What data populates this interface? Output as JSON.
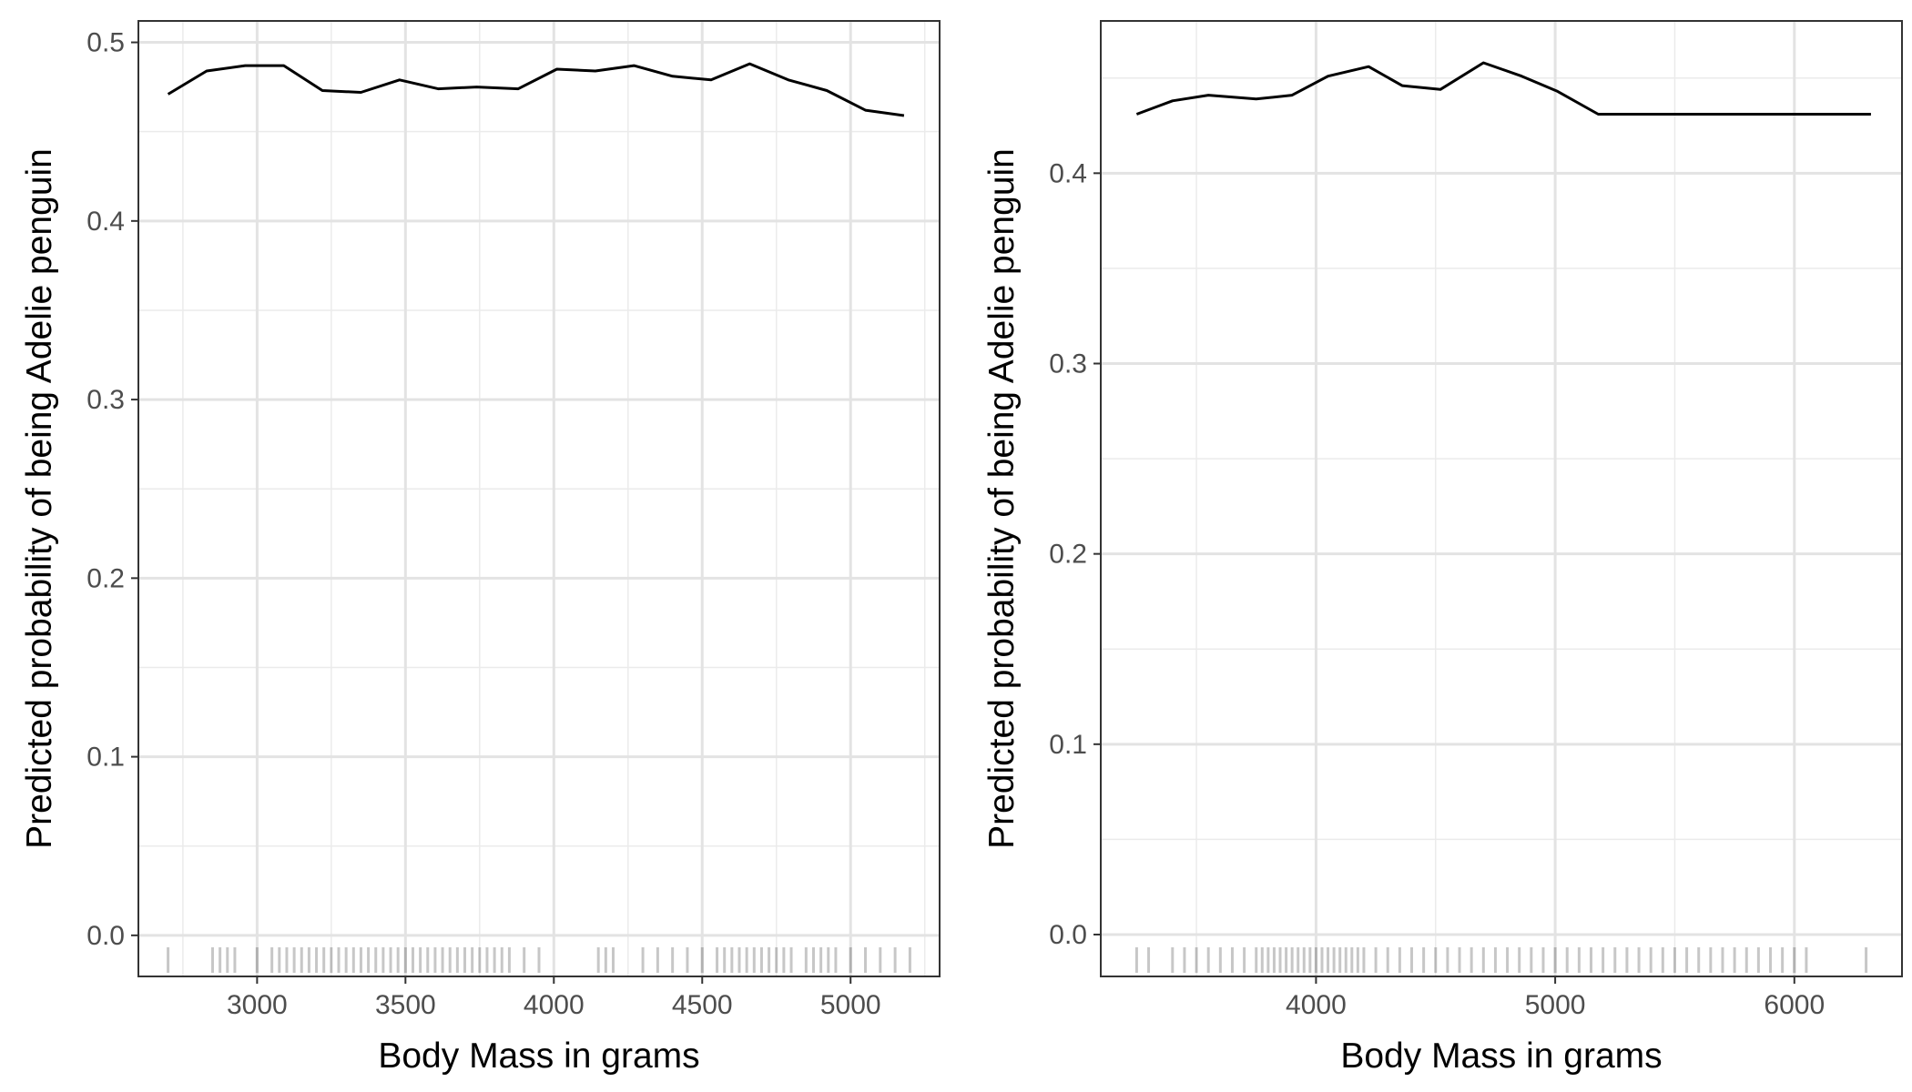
{
  "chart_data": [
    {
      "type": "line",
      "title": "",
      "xlabel": "Body Mass in grams",
      "ylabel": "Predicted probability of being Adelie penguin",
      "xlim": [
        2600,
        5300
      ],
      "ylim": [
        -0.023,
        0.512
      ],
      "x_ticks": [
        3000,
        3500,
        4000,
        4500,
        5000
      ],
      "y_ticks": [
        0.0,
        0.1,
        0.2,
        0.3,
        0.4,
        0.5
      ],
      "x_tick_labels": [
        "3000",
        "3500",
        "4000",
        "4500",
        "5000"
      ],
      "y_tick_labels": [
        "0.0",
        "0.1",
        "0.2",
        "0.3",
        "0.4",
        "0.5"
      ],
      "grid": true,
      "series": [
        {
          "x": [
            2700,
            2830,
            2960,
            3090,
            3220,
            3350,
            3480,
            3610,
            3740,
            3880,
            4010,
            4140,
            4270,
            4400,
            4530,
            4660,
            4790,
            4920,
            5050,
            5180
          ],
          "y": [
            0.471,
            0.484,
            0.487,
            0.487,
            0.473,
            0.472,
            0.479,
            0.474,
            0.475,
            0.474,
            0.485,
            0.484,
            0.487,
            0.481,
            0.479,
            0.488,
            0.479,
            0.473,
            0.462,
            0.459
          ]
        }
      ],
      "rug": [
        2700,
        2850,
        2875,
        2900,
        2925,
        3000,
        3050,
        3075,
        3100,
        3125,
        3150,
        3175,
        3200,
        3225,
        3250,
        3275,
        3300,
        3325,
        3350,
        3375,
        3400,
        3425,
        3450,
        3475,
        3500,
        3525,
        3550,
        3575,
        3600,
        3625,
        3650,
        3675,
        3700,
        3725,
        3750,
        3775,
        3800,
        3825,
        3850,
        3900,
        3950,
        4150,
        4175,
        4200,
        4300,
        4350,
        4400,
        4450,
        4500,
        4550,
        4575,
        4600,
        4625,
        4650,
        4675,
        4700,
        4725,
        4750,
        4775,
        4800,
        4850,
        4875,
        4900,
        4925,
        4950,
        5000,
        5050,
        5100,
        5150,
        5200
      ]
    },
    {
      "type": "line",
      "title": "",
      "xlabel": "Body Mass in grams",
      "ylabel": "Predicted probability of being Adelie penguin",
      "xlim": [
        3100,
        6450
      ],
      "ylim": [
        -0.022,
        0.48
      ],
      "x_ticks": [
        4000,
        5000,
        6000
      ],
      "y_ticks": [
        0.0,
        0.1,
        0.2,
        0.3,
        0.4
      ],
      "x_tick_labels": [
        "4000",
        "5000",
        "6000"
      ],
      "y_tick_labels": [
        "0.0",
        "0.1",
        "0.2",
        "0.3",
        "0.4"
      ],
      "grid": true,
      "series": [
        {
          "x": [
            3250,
            3400,
            3550,
            3750,
            3900,
            4050,
            4220,
            4360,
            4520,
            4700,
            4860,
            5010,
            5180,
            5500,
            6000,
            6320
          ],
          "y": [
            0.431,
            0.438,
            0.441,
            0.439,
            0.441,
            0.451,
            0.456,
            0.446,
            0.444,
            0.458,
            0.451,
            0.443,
            0.431,
            0.431,
            0.431,
            0.431
          ]
        }
      ],
      "rug": [
        3250,
        3300,
        3400,
        3450,
        3500,
        3550,
        3600,
        3650,
        3700,
        3750,
        3775,
        3800,
        3825,
        3850,
        3875,
        3900,
        3925,
        3950,
        3975,
        4000,
        4025,
        4050,
        4075,
        4100,
        4125,
        4150,
        4175,
        4200,
        4250,
        4300,
        4350,
        4400,
        4450,
        4500,
        4550,
        4600,
        4650,
        4700,
        4750,
        4800,
        4850,
        4900,
        4950,
        5000,
        5050,
        5100,
        5150,
        5200,
        5250,
        5300,
        5350,
        5400,
        5450,
        5500,
        5550,
        5600,
        5650,
        5700,
        5750,
        5800,
        5850,
        5900,
        5950,
        6000,
        6050,
        6300
      ]
    }
  ]
}
